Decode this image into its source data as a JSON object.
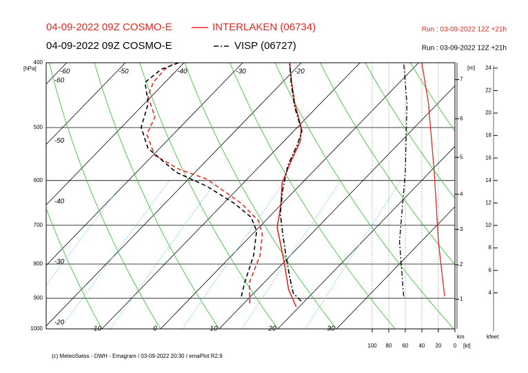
{
  "chart_data": {
    "type": "emagram",
    "footer": "(c) MeteoSwiss - DWH - Emagram / 03-09-2022 20:30 / emaPlot R2.9",
    "ylabel": "[hPa]",
    "ylim": [
      1000,
      400
    ],
    "yscale": "log",
    "yticks": [
      400,
      500,
      600,
      700,
      800,
      900,
      1000
    ],
    "xlim": [
      -19.5,
      50.2
    ],
    "isotherms": [
      -60,
      -50,
      -40,
      -30,
      -20,
      -10,
      0,
      10,
      20,
      30
    ],
    "isotherm_labels_top": [
      -60,
      -50,
      -40,
      -30,
      -20
    ],
    "isotherm_labels_left": [
      -60,
      -50,
      -40,
      -30,
      -20
    ],
    "isotherm_labels_bottom": [
      -10,
      0,
      10,
      20,
      30
    ],
    "dry_adiabats": [
      -20,
      -10,
      0,
      10,
      20,
      30,
      40,
      50,
      60,
      70,
      80,
      90,
      100,
      110,
      120
    ],
    "mixing_ratios": [
      0.5,
      1,
      2,
      5,
      10,
      20
    ],
    "wind_label": "[kt]",
    "wind_xlim": [
      100,
      0
    ],
    "wind_ticks": [
      100,
      80,
      60,
      40,
      20,
      0
    ],
    "km_label": "km",
    "m_label": "[m]",
    "km_ticks": [
      1,
      2,
      3,
      4,
      5,
      6,
      7
    ],
    "km_pressure": [
      903,
      802,
      710,
      629,
      554,
      485,
      424
    ],
    "kfeet_label": "kfeet",
    "kfeet_lim": [
      0,
      25
    ],
    "kfeet_ticks": [
      4,
      6,
      8,
      10,
      12,
      14,
      16,
      18,
      20,
      22,
      24
    ],
    "stations": [
      {
        "model": "04-09-2022 09Z COSMO-E",
        "name": "INTERLAKEN (06734)",
        "run": "Run : 03-09-2022 12Z +21h",
        "color": "#e8241f",
        "temp_dash": "",
        "dew_dash": "6,4",
        "pressure": [
          927,
          873,
          794,
          705,
          657,
          605,
          563,
          524,
          500,
          460,
          428,
          400
        ],
        "temperature": [
          19.5,
          15.3,
          10.0,
          3.1,
          0.3,
          -3.4,
          -5.4,
          -7.2,
          -9.3,
          -14.4,
          -18.4,
          -22.0
        ],
        "dew_pressure": [
          916,
          853,
          776,
          722,
          689,
          649,
          597,
          577,
          550,
          512,
          482,
          449,
          428,
          409,
          400
        ],
        "dewpoint": [
          11.0,
          7.5,
          4.8,
          1.7,
          -1.2,
          -7.0,
          -16.9,
          -23.3,
          -29.7,
          -34.5,
          -36.0,
          -40.6,
          -42.0,
          -42.2,
          -41.5
        ],
        "wind_pressure": [
          894,
          740,
          583,
          460,
          400
        ],
        "wind_speed": [
          12.5,
          20,
          25,
          32,
          40
        ]
      },
      {
        "model": "04-09-2022 09Z COSMO-E",
        "name": "VISP (06727)",
        "run": "Run : 03-09-2022 12Z +21h",
        "color": "#000000",
        "temp_dash": "7,3,2,3",
        "dew_dash": "6,4",
        "pressure": [
          909,
          884,
          833,
          776,
          722,
          673,
          619,
          570,
          531,
          506,
          466,
          428,
          400
        ],
        "temperature": [
          19.4,
          16.7,
          13.2,
          9.2,
          5.2,
          1.4,
          -2.2,
          -5.3,
          -7.1,
          -8.6,
          -13.8,
          -18.5,
          -22.0
        ],
        "dew_pressure": [
          894,
          853,
          776,
          714,
          681,
          649,
          612,
          583,
          537,
          500,
          460,
          428,
          409,
          400
        ],
        "dewpoint": [
          8.4,
          6.7,
          3.7,
          0.2,
          -3.0,
          -8.2,
          -15.7,
          -23.3,
          -32.0,
          -36.6,
          -39.4,
          -43.4,
          -42.8,
          -40.9
        ],
        "wind_pressure": [
          894,
          740,
          583,
          460,
          400
        ],
        "wind_speed": [
          62,
          67,
          60,
          58,
          62
        ]
      }
    ]
  }
}
